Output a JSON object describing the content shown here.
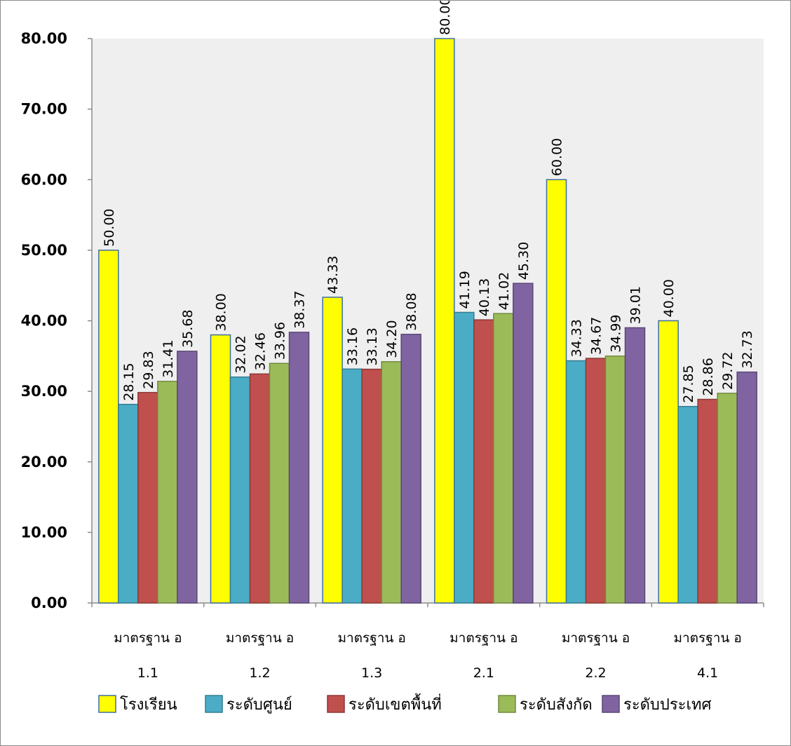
{
  "chart_data": {
    "type": "bar",
    "title": "",
    "xlabel": "",
    "ylabel": "",
    "ylim": [
      0,
      80
    ],
    "yticks": [
      "0.00",
      "10.00",
      "20.00",
      "30.00",
      "40.00",
      "50.00",
      "60.00",
      "70.00",
      "80.00"
    ],
    "grid": false,
    "legend_position": "bottom",
    "plot_background": "#efefef",
    "categories": [
      [
        "มาตรฐาน อ",
        "1.1"
      ],
      [
        "มาตรฐาน อ",
        "1.2"
      ],
      [
        "มาตรฐาน อ",
        "1.3"
      ],
      [
        "มาตรฐาน อ",
        "2.1"
      ],
      [
        "มาตรฐาน อ",
        "2.2"
      ],
      [
        "มาตรฐาน อ",
        "4.1"
      ]
    ],
    "series": [
      {
        "name": "โรงเรียน",
        "color": "#ffff00",
        "border": "#3f6f9f",
        "values": [
          50.0,
          38.0,
          43.33,
          80.0,
          60.0,
          40.0
        ],
        "labels": [
          "50.00",
          "38.00",
          "43.33",
          "80.00",
          "60.00",
          "40.00"
        ]
      },
      {
        "name": "ระดับศูนย์",
        "color": "#4bacc6",
        "border": "#357d91",
        "values": [
          28.15,
          32.02,
          33.16,
          41.19,
          34.33,
          27.85
        ],
        "labels": [
          "28.15",
          "32.02",
          "33.16",
          "41.19",
          "34.33",
          "27.85"
        ]
      },
      {
        "name": "ระดับเขตพื้นที่",
        "color": "#c0504d",
        "border": "#8c3836",
        "values": [
          29.83,
          32.46,
          33.13,
          40.13,
          34.67,
          28.86
        ],
        "labels": [
          "29.83",
          "32.46",
          "33.13",
          "40.13",
          "34.67",
          "28.86"
        ]
      },
      {
        "name": "ระดับสังกัด",
        "color": "#9bbb59",
        "border": "#71893f",
        "values": [
          31.41,
          33.96,
          34.2,
          41.02,
          34.99,
          29.72
        ],
        "labels": [
          "31.41",
          "33.96",
          "34.20",
          "41.02",
          "34.99",
          "29.72"
        ]
      },
      {
        "name": "ระดับประเทศ",
        "color": "#8064a2",
        "border": "#5c4776",
        "values": [
          35.68,
          38.37,
          38.08,
          45.3,
          39.01,
          32.73
        ],
        "labels": [
          "35.68",
          "38.37",
          "38.08",
          "45.30",
          "39.01",
          "32.73"
        ]
      }
    ]
  }
}
